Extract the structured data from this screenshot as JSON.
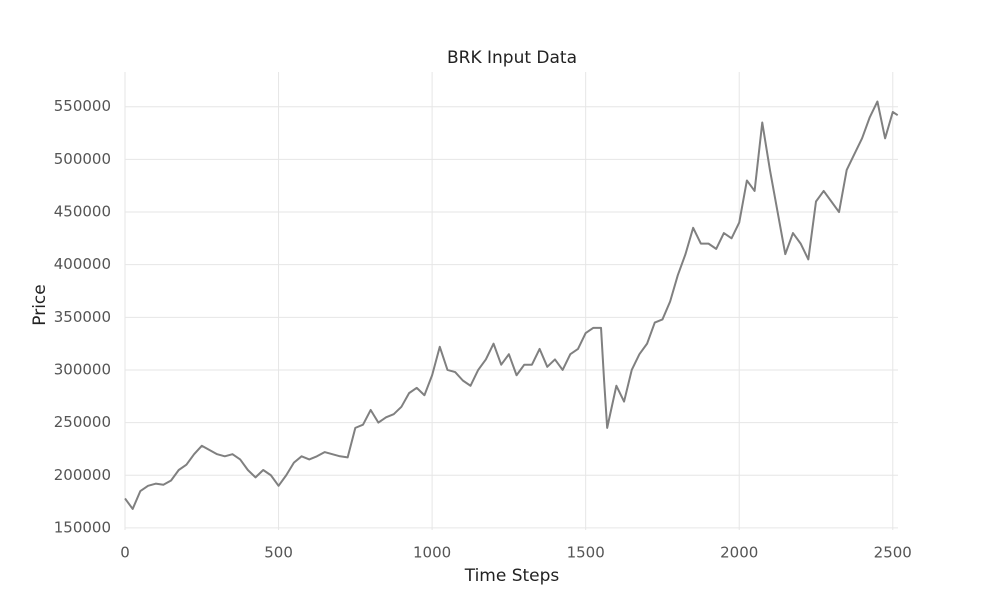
{
  "chart_data": {
    "type": "line",
    "title": "BRK Input Data",
    "x_label": "Time Steps",
    "y_label": "Price",
    "x": [
      0,
      25,
      50,
      75,
      100,
      125,
      150,
      175,
      200,
      225,
      250,
      275,
      300,
      325,
      350,
      375,
      400,
      425,
      450,
      475,
      500,
      525,
      550,
      575,
      600,
      625,
      650,
      675,
      700,
      725,
      750,
      775,
      800,
      825,
      850,
      875,
      900,
      925,
      950,
      975,
      1000,
      1025,
      1050,
      1075,
      1100,
      1125,
      1150,
      1175,
      1200,
      1225,
      1250,
      1275,
      1300,
      1325,
      1350,
      1375,
      1400,
      1425,
      1450,
      1475,
      1500,
      1525,
      1550,
      1560,
      1570,
      1600,
      1625,
      1650,
      1675,
      1700,
      1725,
      1750,
      1775,
      1800,
      1825,
      1850,
      1875,
      1900,
      1925,
      1950,
      1975,
      2000,
      2025,
      2050,
      2075,
      2100,
      2125,
      2150,
      2175,
      2200,
      2225,
      2250,
      2275,
      2300,
      2325,
      2350,
      2375,
      2400,
      2425,
      2450,
      2475,
      2500,
      2516
    ],
    "series": [
      {
        "name": "BRK",
        "color": "#808080",
        "values": [
          178000,
          168000,
          185000,
          190000,
          192000,
          191000,
          195000,
          205000,
          210000,
          220000,
          228000,
          224000,
          220000,
          218000,
          220000,
          215000,
          205000,
          198000,
          205000,
          200000,
          190000,
          200000,
          212000,
          218000,
          215000,
          218000,
          222000,
          220000,
          218000,
          217000,
          245000,
          248000,
          262000,
          250000,
          255000,
          258000,
          265000,
          278000,
          283000,
          276000,
          295000,
          322000,
          300000,
          298000,
          290000,
          285000,
          300000,
          310000,
          325000,
          305000,
          315000,
          295000,
          305000,
          305000,
          320000,
          303000,
          310000,
          300000,
          315000,
          320000,
          335000,
          340000,
          340000,
          290000,
          245000,
          285000,
          270000,
          300000,
          315000,
          325000,
          345000,
          348000,
          365000,
          390000,
          410000,
          435000,
          420000,
          420000,
          415000,
          430000,
          425000,
          440000,
          480000,
          470000,
          535000,
          490000,
          450000,
          410000,
          430000,
          420000,
          405000,
          460000,
          470000,
          460000,
          450000,
          490000,
          505000,
          520000,
          540000,
          555000,
          520000,
          545000,
          542000
        ]
      }
    ],
    "xlim": [
      0,
      2517
    ],
    "xticks": [
      0,
      500,
      1000,
      1500,
      2000,
      2500
    ],
    "ylim": [
      148000,
      583000
    ],
    "yticks": [
      150000,
      200000,
      250000,
      300000,
      350000,
      400000,
      450000,
      500000,
      550000
    ],
    "grid": true
  }
}
